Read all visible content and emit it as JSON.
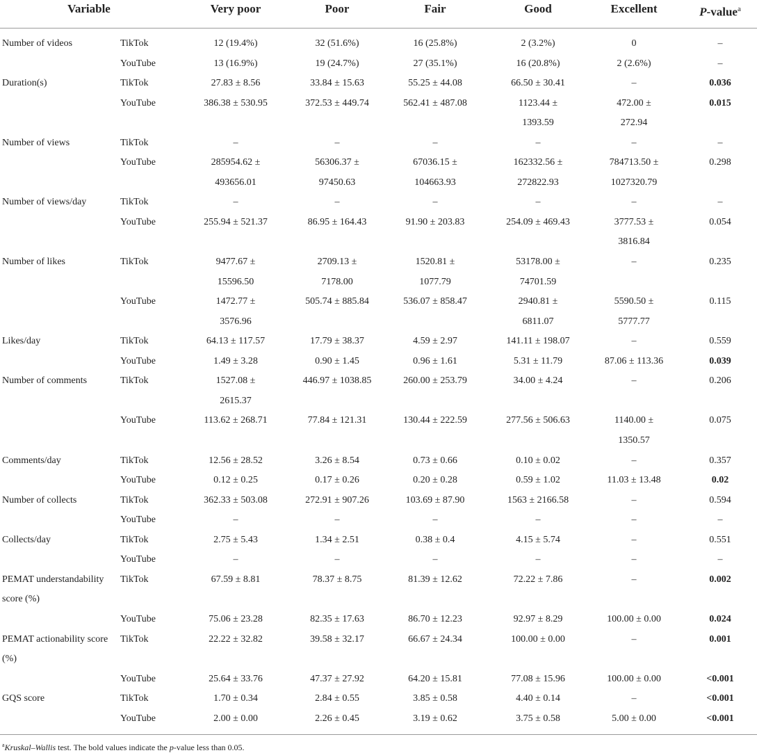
{
  "table": {
    "headers": {
      "variable": "Variable",
      "very_poor": "Very poor",
      "poor": "Poor",
      "fair": "Fair",
      "good": "Good",
      "excellent": "Excellent",
      "pvalue_p": "P",
      "pvalue_rest": "-value",
      "pvalue_sup": "a"
    },
    "rows": [
      {
        "label": "Number of videos",
        "platform": "TikTok",
        "very_poor": [
          "12 (19.4%)"
        ],
        "poor": [
          "32 (51.6%)"
        ],
        "fair": [
          "16 (25.8%)"
        ],
        "good": [
          "2 (3.2%)"
        ],
        "excellent": [
          "0"
        ],
        "pvalue": "–",
        "bold": false
      },
      {
        "label": "",
        "platform": "YouTube",
        "very_poor": [
          "13 (16.9%)"
        ],
        "poor": [
          "19 (24.7%)"
        ],
        "fair": [
          "27 (35.1%)"
        ],
        "good": [
          "16 (20.8%)"
        ],
        "excellent": [
          "2 (2.6%)"
        ],
        "pvalue": "–",
        "bold": false
      },
      {
        "label": "Duration(s)",
        "platform": "TikTok",
        "very_poor": [
          "27.83 ± 8.56"
        ],
        "poor": [
          "33.84 ± 15.63"
        ],
        "fair": [
          "55.25 ± 44.08"
        ],
        "good": [
          "66.50 ± 30.41"
        ],
        "excellent": [
          "–"
        ],
        "pvalue": "0.036",
        "bold": true
      },
      {
        "label": "",
        "platform": "YouTube",
        "very_poor": [
          "386.38 ± 530.95"
        ],
        "poor": [
          "372.53 ± 449.74"
        ],
        "fair": [
          "562.41 ± 487.08"
        ],
        "good": [
          "1123.44 ±",
          "1393.59"
        ],
        "excellent": [
          "472.00 ±",
          "272.94"
        ],
        "pvalue": "0.015",
        "bold": true
      },
      {
        "label": "Number of views",
        "platform": "TikTok",
        "very_poor": [
          "–"
        ],
        "poor": [
          "–"
        ],
        "fair": [
          "–"
        ],
        "good": [
          "–"
        ],
        "excellent": [
          "–"
        ],
        "pvalue": "–",
        "bold": false
      },
      {
        "label": "",
        "platform": "YouTube",
        "very_poor": [
          "285954.62 ±",
          "493656.01"
        ],
        "poor": [
          "56306.37 ±",
          "97450.63"
        ],
        "fair": [
          "67036.15 ±",
          "104663.93"
        ],
        "good": [
          "162332.56 ±",
          "272822.93"
        ],
        "excellent": [
          "784713.50 ±",
          "1027320.79"
        ],
        "pvalue": "0.298",
        "bold": false
      },
      {
        "label": "Number of views/day",
        "platform": "TikTok",
        "very_poor": [
          "–"
        ],
        "poor": [
          "–"
        ],
        "fair": [
          "–"
        ],
        "good": [
          "–"
        ],
        "excellent": [
          "–"
        ],
        "pvalue": "–",
        "bold": false
      },
      {
        "label": "",
        "platform": "YouTube",
        "very_poor": [
          "255.94 ± 521.37"
        ],
        "poor": [
          "86.95 ± 164.43"
        ],
        "fair": [
          "91.90 ± 203.83"
        ],
        "good": [
          "254.09 ± 469.43"
        ],
        "excellent": [
          "3777.53 ±",
          "3816.84"
        ],
        "pvalue": "0.054",
        "bold": false
      },
      {
        "label": "Number of likes",
        "platform": "TikTok",
        "very_poor": [
          "9477.67 ±",
          "15596.50"
        ],
        "poor": [
          "2709.13 ±",
          "7178.00"
        ],
        "fair": [
          "1520.81 ±",
          "1077.79"
        ],
        "good": [
          "53178.00 ±",
          "74701.59"
        ],
        "excellent": [
          "–"
        ],
        "pvalue": "0.235",
        "bold": false
      },
      {
        "label": "",
        "platform": "YouTube",
        "very_poor": [
          "1472.77 ±",
          "3576.96"
        ],
        "poor": [
          "505.74 ± 885.84"
        ],
        "fair": [
          "536.07 ± 858.47"
        ],
        "good": [
          "2940.81 ±",
          "6811.07"
        ],
        "excellent": [
          "5590.50 ±",
          "5777.77"
        ],
        "pvalue": "0.115",
        "bold": false
      },
      {
        "label": "Likes/day",
        "platform": "TikTok",
        "very_poor": [
          "64.13 ± 117.57"
        ],
        "poor": [
          "17.79 ± 38.37"
        ],
        "fair": [
          "4.59 ± 2.97"
        ],
        "good": [
          "141.11 ± 198.07"
        ],
        "excellent": [
          "–"
        ],
        "pvalue": "0.559",
        "bold": false
      },
      {
        "label": "",
        "platform": "YouTube",
        "very_poor": [
          "1.49 ± 3.28"
        ],
        "poor": [
          "0.90 ± 1.45"
        ],
        "fair": [
          "0.96 ± 1.61"
        ],
        "good": [
          "5.31 ± 11.79"
        ],
        "excellent": [
          "87.06 ± 113.36"
        ],
        "pvalue": "0.039",
        "bold": true
      },
      {
        "label": "Number of comments",
        "platform": "TikTok",
        "very_poor": [
          "1527.08 ±",
          "2615.37"
        ],
        "poor": [
          "446.97 ± 1038.85"
        ],
        "fair": [
          "260.00 ± 253.79"
        ],
        "good": [
          "34.00 ± 4.24"
        ],
        "excellent": [
          "–"
        ],
        "pvalue": "0.206",
        "bold": false
      },
      {
        "label": "",
        "platform": "YouTube",
        "very_poor": [
          "113.62 ± 268.71"
        ],
        "poor": [
          "77.84 ± 121.31"
        ],
        "fair": [
          "130.44 ± 222.59"
        ],
        "good": [
          "277.56 ± 506.63"
        ],
        "excellent": [
          "1140.00 ±",
          "1350.57"
        ],
        "pvalue": "0.075",
        "bold": false
      },
      {
        "label": "Comments/day",
        "platform": "TikTok",
        "very_poor": [
          "12.56 ± 28.52"
        ],
        "poor": [
          "3.26 ± 8.54"
        ],
        "fair": [
          "0.73 ± 0.66"
        ],
        "good": [
          "0.10 ± 0.02"
        ],
        "excellent": [
          "–"
        ],
        "pvalue": "0.357",
        "bold": false
      },
      {
        "label": "",
        "platform": "YouTube",
        "very_poor": [
          "0.12 ± 0.25"
        ],
        "poor": [
          "0.17 ± 0.26"
        ],
        "fair": [
          "0.20 ± 0.28"
        ],
        "good": [
          "0.59 ± 1.02"
        ],
        "excellent": [
          "11.03 ± 13.48"
        ],
        "pvalue": "0.02",
        "bold": true
      },
      {
        "label": "Number of collects",
        "platform": "TikTok",
        "very_poor": [
          "362.33 ± 503.08"
        ],
        "poor": [
          "272.91 ± 907.26"
        ],
        "fair": [
          "103.69 ± 87.90"
        ],
        "good": [
          "1563 ± 2166.58"
        ],
        "excellent": [
          "–"
        ],
        "pvalue": "0.594",
        "bold": false
      },
      {
        "label": "",
        "platform": "YouTube",
        "very_poor": [
          "–"
        ],
        "poor": [
          "–"
        ],
        "fair": [
          "–"
        ],
        "good": [
          "–"
        ],
        "excellent": [
          "–"
        ],
        "pvalue": "–",
        "bold": false
      },
      {
        "label": "Collects/day",
        "platform": "TikTok",
        "very_poor": [
          "2.75 ± 5.43"
        ],
        "poor": [
          "1.34 ± 2.51"
        ],
        "fair": [
          "0.38 ± 0.4"
        ],
        "good": [
          "4.15 ± 5.74"
        ],
        "excellent": [
          "–"
        ],
        "pvalue": "0.551",
        "bold": false
      },
      {
        "label": "",
        "platform": "YouTube",
        "very_poor": [
          "–"
        ],
        "poor": [
          "–"
        ],
        "fair": [
          "–"
        ],
        "good": [
          "–"
        ],
        "excellent": [
          "–"
        ],
        "pvalue": "–",
        "bold": false
      },
      {
        "label": "PEMAT understandability score (%)",
        "platform": "TikTok",
        "very_poor": [
          "67.59 ± 8.81"
        ],
        "poor": [
          "78.37 ± 8.75"
        ],
        "fair": [
          "81.39 ± 12.62"
        ],
        "good": [
          "72.22 ± 7.86"
        ],
        "excellent": [
          "–"
        ],
        "pvalue": "0.002",
        "bold": true
      },
      {
        "label": "",
        "platform": "YouTube",
        "very_poor": [
          "75.06 ± 23.28"
        ],
        "poor": [
          "82.35 ± 17.63"
        ],
        "fair": [
          "86.70 ± 12.23"
        ],
        "good": [
          "92.97 ± 8.29"
        ],
        "excellent": [
          "100.00 ± 0.00"
        ],
        "pvalue": "0.024",
        "bold": true
      },
      {
        "label": "PEMAT actionability score (%)",
        "platform": "TikTok",
        "very_poor": [
          "22.22 ± 32.82"
        ],
        "poor": [
          "39.58 ± 32.17"
        ],
        "fair": [
          "66.67 ± 24.34"
        ],
        "good": [
          "100.00 ± 0.00"
        ],
        "excellent": [
          "–"
        ],
        "pvalue": "0.001",
        "bold": true
      },
      {
        "label": "",
        "platform": "YouTube",
        "very_poor": [
          "25.64 ± 33.76"
        ],
        "poor": [
          "47.37 ± 27.92"
        ],
        "fair": [
          "64.20 ± 15.81"
        ],
        "good": [
          "77.08 ± 15.96"
        ],
        "excellent": [
          "100.00 ± 0.00"
        ],
        "pvalue": "<0.001",
        "bold": true
      },
      {
        "label": "GQS score",
        "platform": "TikTok",
        "very_poor": [
          "1.70 ± 0.34"
        ],
        "poor": [
          "2.84 ± 0.55"
        ],
        "fair": [
          "3.85 ± 0.58"
        ],
        "good": [
          "4.40 ± 0.14"
        ],
        "excellent": [
          "–"
        ],
        "pvalue": "<0.001",
        "bold": true
      },
      {
        "label": "",
        "platform": "YouTube",
        "very_poor": [
          "2.00 ± 0.00"
        ],
        "poor": [
          "2.26 ± 0.45"
        ],
        "fair": [
          "3.19 ± 0.62"
        ],
        "good": [
          "3.75 ± 0.58"
        ],
        "excellent": [
          "5.00 ± 0.00"
        ],
        "pvalue": "<0.001",
        "bold": true
      }
    ]
  },
  "footnote": {
    "marker": "a",
    "test": "Kruskal–Wallis",
    "text_a": " test. The bold values indicate the ",
    "p": "p",
    "text_b": "-value less than 0.05."
  }
}
